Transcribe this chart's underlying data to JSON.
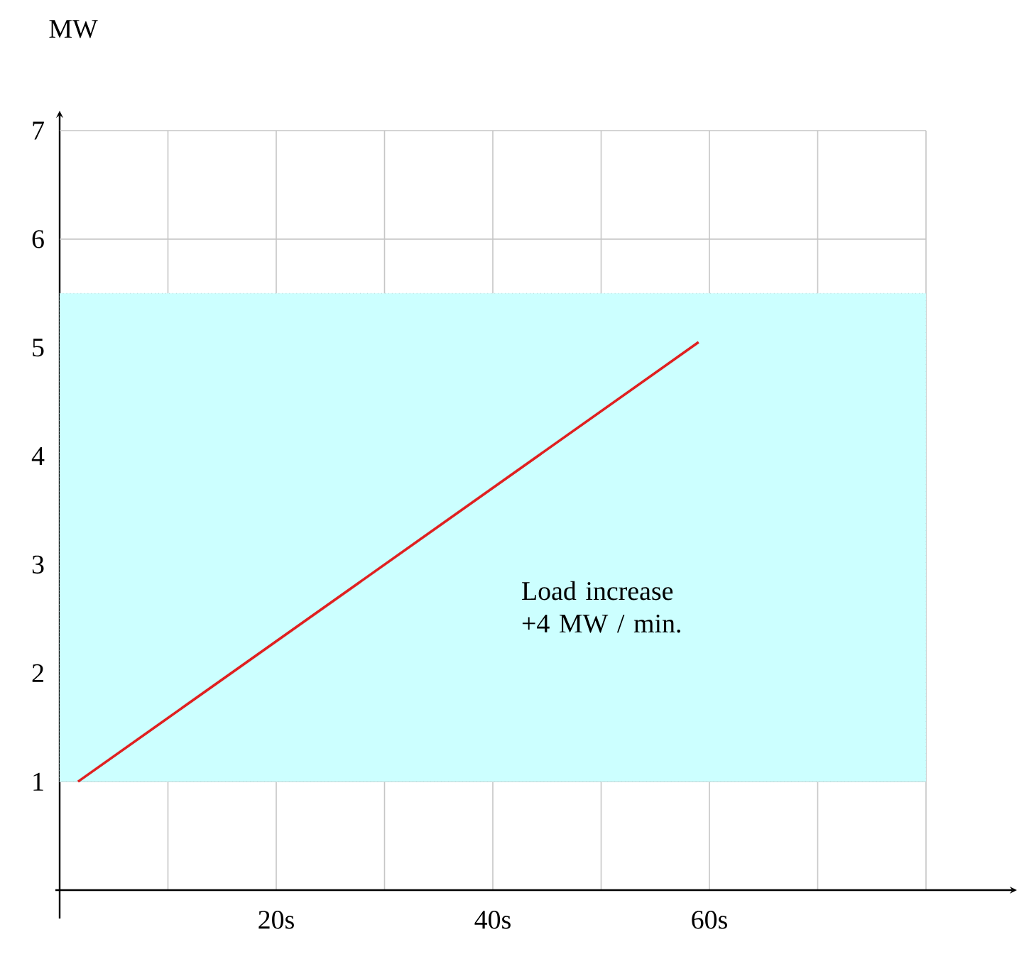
{
  "chart_data": {
    "type": "line",
    "ylabel": "MW",
    "annotations": [
      "Load increase +4 MW / min."
    ],
    "xlim": [
      0,
      88
    ],
    "ylim": [
      0,
      7
    ],
    "xticks": [
      {
        "value": 10,
        "label": null
      },
      {
        "value": 20,
        "label": "20s"
      },
      {
        "value": 30,
        "label": null
      },
      {
        "value": 40,
        "label": "40s"
      },
      {
        "value": 50,
        "label": null
      },
      {
        "value": 60,
        "label": "60s"
      },
      {
        "value": 70,
        "label": null
      },
      {
        "value": 80,
        "label": null
      }
    ],
    "yticks": [
      1,
      2,
      3,
      4,
      5,
      6,
      7
    ],
    "grid": true,
    "marker": "none",
    "line_style": "solid",
    "bands": [
      {
        "axis": "y",
        "from": 1,
        "to": 5.5,
        "color": "#ccffff"
      }
    ],
    "series": [
      {
        "color": "#e02020",
        "x": [
          1.7,
          59
        ],
        "values": [
          1.0,
          5.05
        ]
      }
    ]
  }
}
